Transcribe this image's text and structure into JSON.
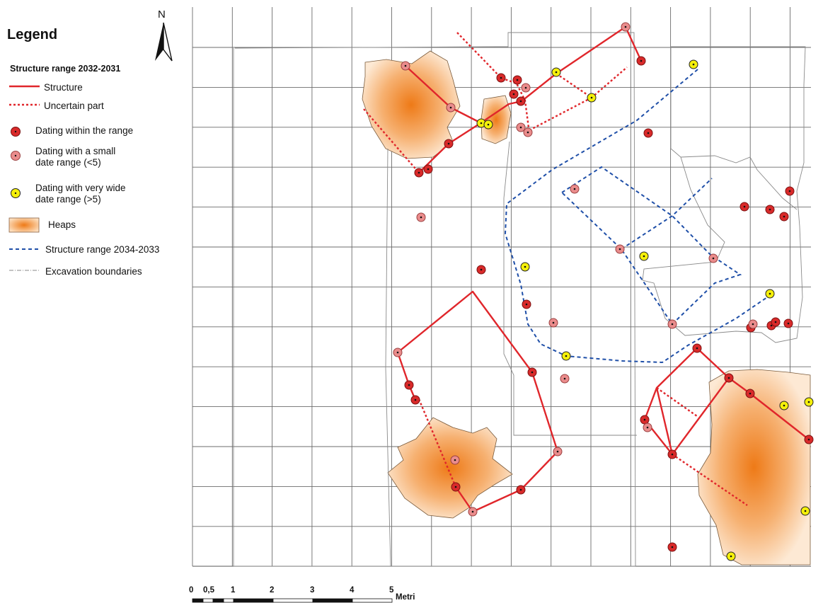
{
  "legend": {
    "title": "Legend",
    "subtitle": "Structure range  2032-2031",
    "items": {
      "structure": "Structure",
      "uncertain": "Uncertain part",
      "dating_within": "Dating within the range",
      "dating_small_1": "Dating with a small",
      "dating_small_2": "date range  (<5)",
      "dating_wide_1": "Dating with very wide",
      "dating_wide_2": "date range (>5)",
      "heaps": "Heaps",
      "structure_2034": "Structure range 2034-2033",
      "excavation": "Excavation boundaries"
    }
  },
  "north_label": "N",
  "scale": {
    "ticks": [
      "0",
      "0,5",
      "1",
      "2",
      "3",
      "4",
      "5"
    ],
    "unit": "Metri"
  },
  "colors": {
    "structure": "#e0262b",
    "uncertain": "#e0262b",
    "within_range": "#d92a2a",
    "small_range": "#ea8c8c",
    "wide_range": "#f5f00a",
    "heap_center": "#ee7a17",
    "heap_edge": "#fde9d4",
    "structure_2034": "#1f4fa8",
    "excavation": "#8a8a8a",
    "grid": "#6b6b6b"
  }
}
